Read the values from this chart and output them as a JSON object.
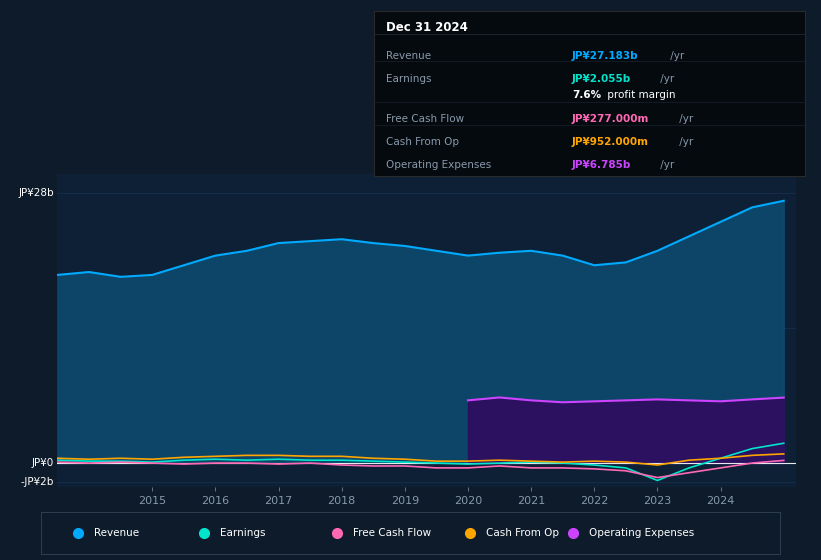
{
  "bg_color": "#0d1b2a",
  "plot_bg_color": "#0d2035",
  "grid_color": "#1e3a5f",
  "ylim": [
    -2.5,
    30
  ],
  "years": [
    2013.5,
    2014.0,
    2014.5,
    2015.0,
    2015.5,
    2016.0,
    2016.5,
    2017.0,
    2017.5,
    2018.0,
    2018.5,
    2019.0,
    2019.5,
    2020.0,
    2020.5,
    2021.0,
    2021.5,
    2022.0,
    2022.5,
    2023.0,
    2023.5,
    2024.0,
    2024.5,
    2025.0
  ],
  "revenue": [
    19.5,
    19.8,
    19.3,
    19.5,
    20.5,
    21.5,
    22.0,
    22.8,
    23.0,
    23.2,
    22.8,
    22.5,
    22.0,
    21.5,
    21.8,
    22.0,
    21.5,
    20.5,
    20.8,
    22.0,
    23.5,
    25.0,
    26.5,
    27.183
  ],
  "earnings": [
    0.3,
    0.2,
    0.2,
    0.1,
    0.3,
    0.4,
    0.3,
    0.4,
    0.3,
    0.3,
    0.2,
    0.1,
    0.0,
    -0.1,
    0.0,
    0.1,
    0.0,
    -0.2,
    -0.5,
    -1.8,
    -0.5,
    0.5,
    1.5,
    2.055
  ],
  "free_cash_flow": [
    0.1,
    0.0,
    0.1,
    0.0,
    -0.1,
    0.0,
    0.0,
    -0.1,
    0.0,
    -0.2,
    -0.3,
    -0.3,
    -0.5,
    -0.5,
    -0.3,
    -0.5,
    -0.5,
    -0.6,
    -0.8,
    -1.5,
    -1.0,
    -0.5,
    0.0,
    0.277
  ],
  "cash_from_op": [
    0.5,
    0.4,
    0.5,
    0.4,
    0.6,
    0.7,
    0.8,
    0.8,
    0.7,
    0.7,
    0.5,
    0.4,
    0.2,
    0.2,
    0.3,
    0.2,
    0.1,
    0.2,
    0.1,
    -0.2,
    0.3,
    0.5,
    0.8,
    0.952
  ],
  "operating_expenses_years": [
    2020.0,
    2020.5,
    2021.0,
    2021.5,
    2022.0,
    2022.5,
    2023.0,
    2023.5,
    2024.0,
    2024.5,
    2025.0
  ],
  "operating_expenses": [
    6.5,
    6.8,
    6.5,
    6.3,
    6.4,
    6.5,
    6.6,
    6.5,
    6.4,
    6.6,
    6.785
  ],
  "revenue_color": "#00aaff",
  "revenue_fill": "#0d4a6e",
  "earnings_color": "#00e5cc",
  "free_cash_flow_color": "#ff69b4",
  "cash_from_op_color": "#ffa500",
  "operating_expenses_color": "#cc44ff",
  "operating_expenses_fill": "#2d1060",
  "xticks": [
    2015,
    2016,
    2017,
    2018,
    2019,
    2020,
    2021,
    2022,
    2023,
    2024
  ],
  "xlim": [
    2013.5,
    2025.2
  ],
  "legend_items": [
    {
      "label": "Revenue",
      "color": "#00aaff"
    },
    {
      "label": "Earnings",
      "color": "#00e5cc"
    },
    {
      "label": "Free Cash Flow",
      "color": "#ff69b4"
    },
    {
      "label": "Cash From Op",
      "color": "#ffa500"
    },
    {
      "label": "Operating Expenses",
      "color": "#cc44ff"
    }
  ],
  "info_box": {
    "title": "Dec 31 2024",
    "rows": [
      {
        "label": "Revenue",
        "value": "JP¥27.183b",
        "value_color": "#00aaff"
      },
      {
        "label": "Earnings",
        "value": "JP¥2.055b",
        "value_color": "#00e5cc"
      },
      {
        "label": "",
        "value": "7.6% profit margin",
        "value_color": "#ffffff"
      },
      {
        "label": "Free Cash Flow",
        "value": "JP¥277.000m",
        "value_color": "#ff69b4"
      },
      {
        "label": "Cash From Op",
        "value": "JP¥952.000m",
        "value_color": "#ffa500"
      },
      {
        "label": "Operating Expenses",
        "value": "JP¥6.785b",
        "value_color": "#cc44ff"
      }
    ]
  }
}
